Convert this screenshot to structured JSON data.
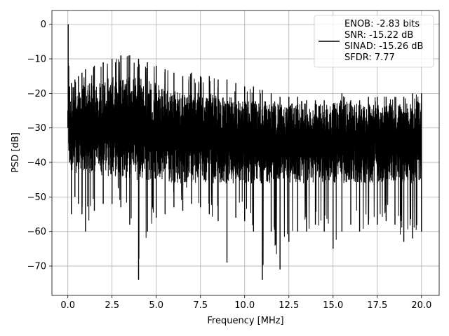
{
  "chart_data": {
    "type": "line",
    "xlabel": "Frequency [MHz]",
    "ylabel": "PSD [dB]",
    "xlim": [
      -0.9,
      21.0
    ],
    "ylim": [
      -78.5,
      4.0
    ],
    "grid": true,
    "x_ticks": [
      0.0,
      2.5,
      5.0,
      7.5,
      10.0,
      12.5,
      15.0,
      17.5,
      20.0
    ],
    "x_tick_labels": [
      "0.0",
      "2.5",
      "5.0",
      "7.5",
      "10.0",
      "12.5",
      "15.0",
      "17.5",
      "20.0"
    ],
    "y_ticks": [
      0,
      -10,
      -20,
      -30,
      -40,
      -50,
      -60,
      -70
    ],
    "y_tick_labels": [
      "0",
      "−10",
      "−20",
      "−30",
      "−40",
      "−50",
      "−60",
      "−70"
    ],
    "legend": {
      "placement": "top-right",
      "entries": [
        "ENOB: -2.83 bits",
        "SNR: -15.22 dB",
        "SINAD: -15.26 dB",
        "SFDR: 7.77"
      ]
    },
    "series": [
      {
        "color": "#000000",
        "x": [
          0.0,
          0.02,
          0.05,
          0.1,
          0.2,
          0.4,
          0.6,
          0.8,
          1.0,
          1.5,
          2.0,
          2.5,
          3.0,
          3.5,
          4.0,
          4.5,
          5.0,
          5.5,
          6.0,
          6.5,
          7.0,
          7.5,
          8.0,
          8.5,
          9.0,
          9.5,
          10.0,
          10.5,
          11.0,
          11.5,
          12.0,
          12.5,
          13.0,
          13.5,
          14.0,
          14.5,
          15.0,
          15.5,
          16.0,
          16.5,
          17.0,
          17.5,
          18.0,
          18.5,
          19.0,
          19.5,
          20.0
        ],
        "peak": [
          -25,
          0,
          -12,
          -18,
          -17,
          -16,
          -15,
          -14,
          -13,
          -12,
          -11,
          -10,
          -9,
          -9,
          -10,
          -11,
          -12,
          -13,
          -14,
          -15,
          -14,
          -15,
          -15,
          -16,
          -16,
          -17,
          -18,
          -18,
          -19,
          -20,
          -21,
          -21,
          -21,
          -22,
          -22,
          -22,
          -23,
          -20,
          -22,
          -22,
          -21,
          -21,
          -21,
          -21,
          -21,
          -20,
          -20
        ],
        "trough": [
          -30,
          -22,
          -25,
          -40,
          -55,
          -50,
          -52,
          -55,
          -60,
          -54,
          -52,
          -52,
          -53,
          -58,
          -74,
          -60,
          -56,
          -55,
          -53,
          -54,
          -52,
          -53,
          -55,
          -57,
          -69,
          -56,
          -57,
          -60,
          -74,
          -60,
          -71,
          -63,
          -60,
          -60,
          -58,
          -60,
          -65,
          -60,
          -58,
          -60,
          -58,
          -58,
          -57,
          -58,
          -63,
          -62,
          -60
        ],
        "band_high": [
          -25,
          -18,
          -20,
          -22,
          -21,
          -20,
          -19,
          -18,
          -17,
          -17,
          -16,
          -15,
          -15,
          -15,
          -15,
          -16,
          -17,
          -18,
          -19,
          -20,
          -20,
          -20,
          -20,
          -21,
          -21,
          -21,
          -22,
          -22,
          -22,
          -23,
          -23,
          -23,
          -23,
          -23,
          -23,
          -23,
          -23,
          -23,
          -23,
          -23,
          -23,
          -23,
          -23,
          -23,
          -23,
          -23,
          -22
        ],
        "band_low": [
          -30,
          -35,
          -38,
          -40,
          -42,
          -43,
          -43,
          -43,
          -43,
          -43,
          -44,
          -44,
          -44,
          -45,
          -45,
          -45,
          -45,
          -45,
          -46,
          -46,
          -46,
          -46,
          -46,
          -46,
          -46,
          -46,
          -46,
          -46,
          -46,
          -46,
          -46,
          -46,
          -46,
          -46,
          -46,
          -46,
          -46,
          -46,
          -46,
          -46,
          -46,
          -46,
          -46,
          -46,
          -46,
          -46,
          -45
        ]
      }
    ]
  }
}
